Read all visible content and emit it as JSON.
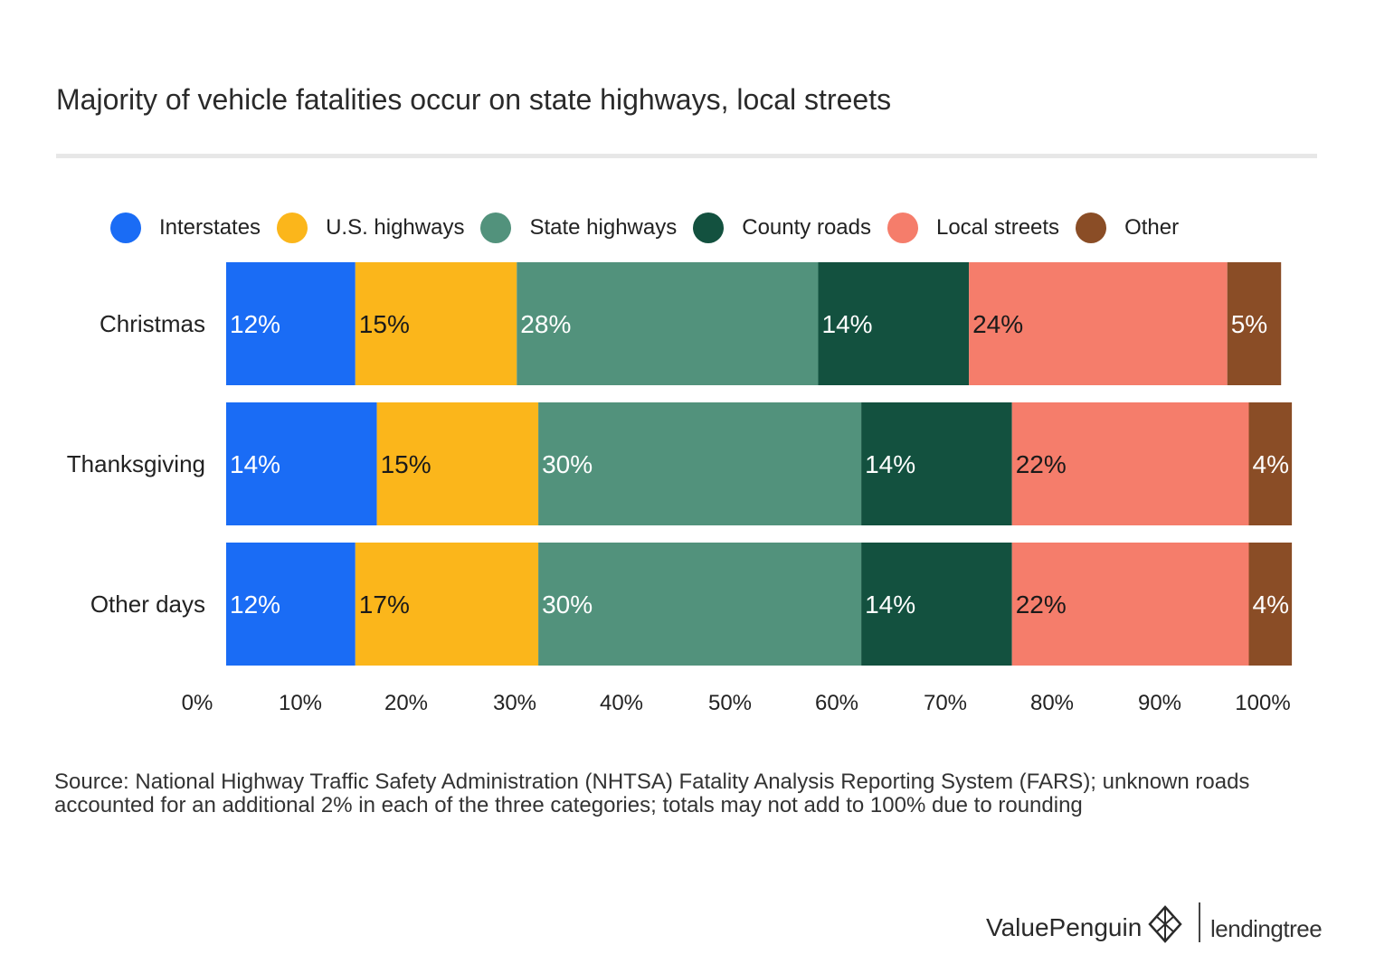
{
  "chart_data": {
    "type": "bar",
    "orientation": "horizontal",
    "stacked": true,
    "title": "Majority of vehicle fatalities occur on state highways, local streets",
    "categories": [
      "Christmas",
      "Thanksgiving",
      "Other days"
    ],
    "series": [
      {
        "name": "Interstates",
        "color": "#1a6cf5",
        "values": [
          12,
          14,
          12
        ],
        "labels": [
          "12%",
          "14%",
          "12%"
        ],
        "label_color": "#ffffff"
      },
      {
        "name": "U.S. highways",
        "color": "#fbb61b",
        "values": [
          15,
          15,
          17
        ],
        "labels": [
          "15%",
          "15%",
          "17%"
        ],
        "label_color": "#1a1a1a"
      },
      {
        "name": "State highways",
        "color": "#52927c",
        "values": [
          28,
          30,
          30
        ],
        "labels": [
          "28%",
          "30%",
          "30%"
        ],
        "label_color": "#ffffff"
      },
      {
        "name": "County roads",
        "color": "#13513f",
        "values": [
          14,
          14,
          14
        ],
        "labels": [
          "14%",
          "14%",
          "14%"
        ],
        "label_color": "#ffffff"
      },
      {
        "name": "Local streets",
        "color": "#f57d6b",
        "values": [
          24,
          22,
          22
        ],
        "labels": [
          "24%",
          "22%",
          "22%"
        ],
        "label_color": "#1a1a1a"
      },
      {
        "name": "Other",
        "color": "#8a4d26",
        "values": [
          5,
          4,
          4
        ],
        "labels": [
          "5%",
          "4%",
          "4%"
        ],
        "label_color": "#ffffff"
      }
    ],
    "xlim": [
      0,
      100
    ],
    "xticks": [
      0,
      10,
      20,
      30,
      40,
      50,
      60,
      70,
      80,
      90,
      100
    ],
    "xtick_labels": [
      "0%",
      "10%",
      "20%",
      "30%",
      "40%",
      "50%",
      "60%",
      "70%",
      "80%",
      "90%",
      "100%"
    ],
    "legend_position": "top",
    "grid": false
  },
  "source_note": "Source: National Highway Traffic Safety Administration (NHTSA) Fatality Analysis Reporting System (FARS); unknown roads accounted for an additional 2% in each of the three categories; totals may not add to 100% due to rounding",
  "brand": {
    "valuepenguin": "ValuePenguin",
    "lendingtree": "lendingtree",
    "logo_icon": "valuepenguin-logo-icon"
  }
}
